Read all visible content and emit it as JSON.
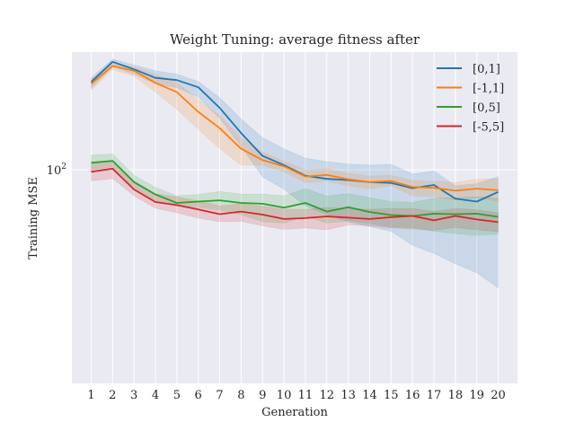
{
  "chart_data": {
    "type": "line",
    "title": "Weight Tuning: average fitness after",
    "xlabel": "Generation",
    "ylabel": "Training MSE",
    "yscale": "log",
    "ylim": [
      58,
      135
    ],
    "xlim": [
      0.1,
      20.9
    ],
    "x": [
      1,
      2,
      3,
      4,
      5,
      6,
      7,
      8,
      9,
      10,
      11,
      12,
      13,
      14,
      15,
      16,
      17,
      18,
      19,
      20
    ],
    "y_tick_labels": [
      {
        "value": 100,
        "label": "10^2"
      }
    ],
    "grid": true,
    "legend_position": "top-right",
    "series": [
      {
        "name": "[0,1]",
        "color": "#1f77b4",
        "values": [
          125.1,
          131.7,
          129.2,
          126.4,
          125.7,
          123.4,
          117.1,
          109.8,
          103.6,
          101.2,
          98.5,
          97.7,
          97.4,
          96.9,
          96.7,
          95.4,
          96.2,
          92.9,
          92.2,
          94.5
        ],
        "lower": [
          123.1,
          130.1,
          127.6,
          124.6,
          123.3,
          120.4,
          114.1,
          106.1,
          98.2,
          95.2,
          91.2,
          89.2,
          87.6,
          86.5,
          85.5,
          82.5,
          80.8,
          78.7,
          76.9,
          74.0
        ],
        "upper": [
          126.4,
          132.6,
          130.6,
          128.7,
          127.6,
          125.2,
          120.2,
          113.8,
          108.5,
          105.5,
          103.0,
          102.1,
          101.5,
          101.2,
          101.4,
          98.9,
          99.7,
          96.0,
          96.5,
          98.3
        ]
      },
      {
        "name": "[-1,1]",
        "color": "#ff7f0e",
        "values": [
          124.5,
          130.3,
          128.7,
          124.8,
          121.9,
          115.9,
          111.2,
          105.5,
          102.5,
          100.9,
          98.3,
          98.7,
          97.6,
          96.9,
          97.2,
          95.7,
          95.5,
          94.8,
          95.3,
          94.9
        ],
        "lower": [
          122.5,
          129.1,
          127.0,
          121.9,
          116.7,
          110.9,
          105.6,
          101.2,
          101.2,
          99.5,
          96.8,
          97.2,
          96.0,
          95.3,
          96.0,
          93.6,
          93.4,
          92.5,
          93.1,
          92.3
        ],
        "upper": [
          126.1,
          131.5,
          129.9,
          127.6,
          124.9,
          119.6,
          114.8,
          108.4,
          104.6,
          102.2,
          100.0,
          100.2,
          99.1,
          98.4,
          98.6,
          97.3,
          97.1,
          96.8,
          97.6,
          97.7
        ]
      },
      {
        "name": "[0,5]",
        "color": "#2ca02c",
        "values": [
          101.8,
          102.3,
          96.9,
          93.9,
          91.9,
          92.2,
          92.5,
          91.9,
          91.7,
          90.8,
          91.9,
          89.9,
          90.9,
          89.8,
          89.1,
          88.9,
          89.4,
          89.3,
          89.4,
          88.7
        ],
        "lower": [
          100.0,
          100.8,
          95.5,
          92.4,
          91.2,
          90.9,
          90.2,
          89.2,
          87.6,
          87.3,
          88.8,
          87.3,
          87.8,
          87.2,
          86.4,
          86.3,
          85.5,
          85.0,
          84.6,
          84.9
        ],
        "upper": [
          103.8,
          104.1,
          98.6,
          95.6,
          93.6,
          93.9,
          94.6,
          94.0,
          94.0,
          93.6,
          95.3,
          93.5,
          94.1,
          93.1,
          92.2,
          92.0,
          93.0,
          93.1,
          93.4,
          93.0
        ]
      },
      {
        "name": "[-5,5]",
        "color": "#d62728",
        "values": [
          99.5,
          100.3,
          95.1,
          92.1,
          91.4,
          90.4,
          89.3,
          89.9,
          89.2,
          88.2,
          88.4,
          88.8,
          88.5,
          88.2,
          88.6,
          88.9,
          87.9,
          88.9,
          88.1,
          87.5
        ],
        "lower": [
          97.2,
          97.8,
          93.6,
          90.7,
          89.6,
          88.4,
          87.6,
          87.7,
          86.7,
          85.9,
          86.2,
          85.8,
          86.9,
          86.7,
          86.2,
          86.0,
          85.7,
          86.3,
          85.8,
          85.4
        ],
        "upper": [
          101.4,
          102.4,
          97.1,
          94.1,
          93.3,
          92.4,
          91.2,
          91.7,
          91.1,
          90.4,
          90.4,
          90.8,
          90.6,
          90.4,
          90.6,
          90.6,
          89.9,
          90.6,
          90.3,
          89.6
        ]
      }
    ]
  }
}
